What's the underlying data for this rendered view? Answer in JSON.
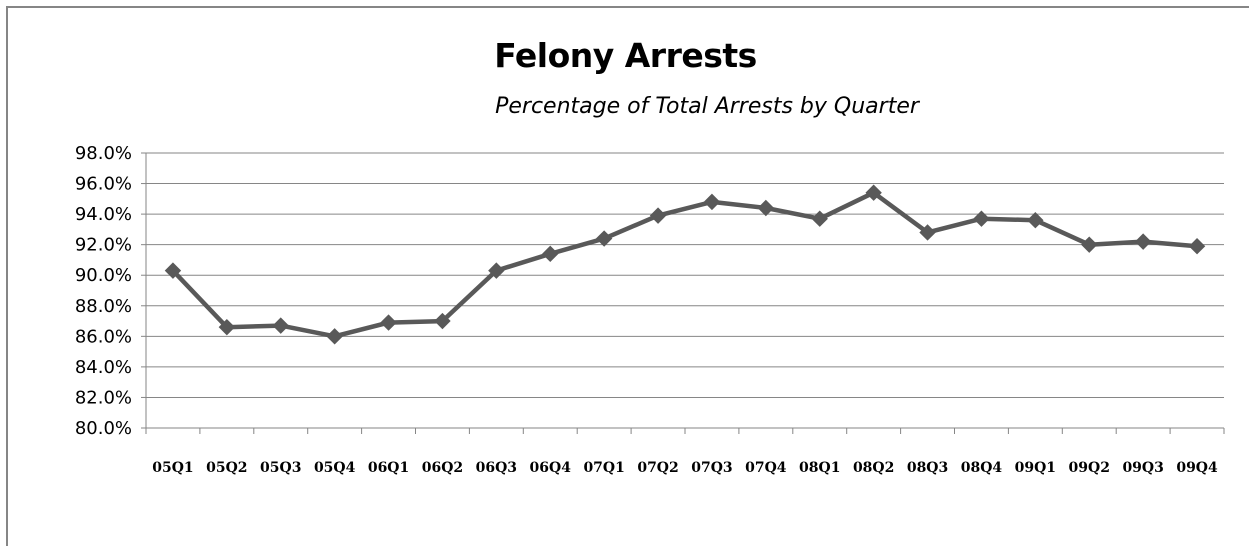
{
  "chart_data": {
    "type": "line",
    "title": "Felony Arrests",
    "subtitle": "Percentage of Total Arrests by Quarter",
    "xlabel": "",
    "ylabel": "",
    "categories": [
      "05Q1",
      "05Q2",
      "05Q3",
      "05Q4",
      "06Q1",
      "06Q2",
      "06Q3",
      "06Q4",
      "07Q1",
      "07Q2",
      "07Q3",
      "07Q4",
      "08Q1",
      "08Q2",
      "08Q3",
      "08Q4",
      "09Q1",
      "09Q2",
      "09Q3",
      "09Q4"
    ],
    "series": [
      {
        "values": [
          90.3,
          86.6,
          86.7,
          86.0,
          86.9,
          87.0,
          90.3,
          91.4,
          92.4,
          93.9,
          94.8,
          94.4,
          93.7,
          95.4,
          92.8,
          93.7,
          93.6,
          92.0,
          92.2,
          91.9
        ],
        "color": "#595959",
        "marker": "diamond"
      }
    ],
    "yticks": [
      "80.0%",
      "82.0%",
      "84.0%",
      "86.0%",
      "88.0%",
      "90.0%",
      "92.0%",
      "94.0%",
      "96.0%",
      "98.0%"
    ],
    "ylim": [
      80,
      98
    ],
    "grid": true,
    "legend": "none"
  }
}
